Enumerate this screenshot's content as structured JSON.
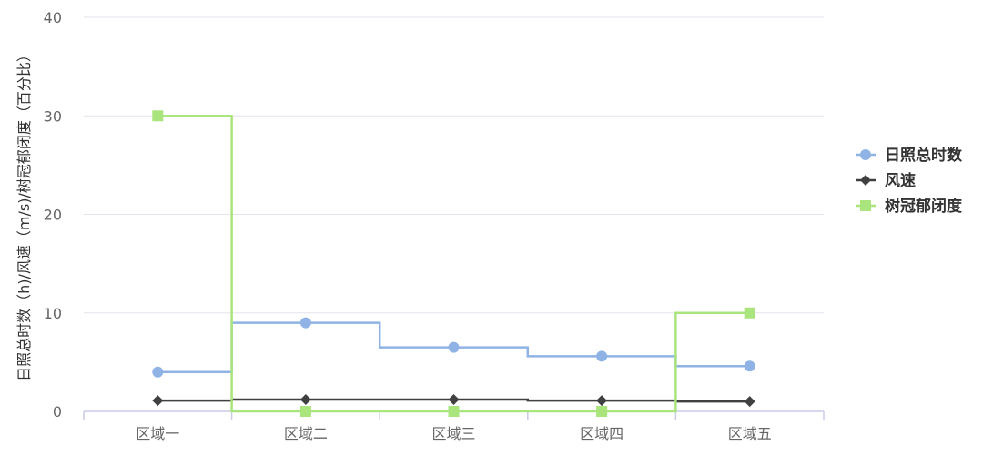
{
  "chart_data": {
    "type": "line",
    "step": true,
    "categories": [
      "区域一",
      "区域二",
      "区域三",
      "区域四",
      "区域五"
    ],
    "ylabel": "日照总时数（h)/风速（m/s)/树冠郁闭度（百分比）",
    "ylim": [
      0,
      40
    ],
    "yticks": [
      0,
      10,
      20,
      30,
      40
    ],
    "grid": true,
    "legend_position": "right",
    "series": [
      {
        "name": "日照总时数",
        "values": [
          4.0,
          9.0,
          6.5,
          5.6,
          4.6
        ],
        "color": "#8fb3e5",
        "marker": "circle"
      },
      {
        "name": "风速",
        "values": [
          1.1,
          1.2,
          1.2,
          1.1,
          1.0
        ],
        "color": "#404040",
        "marker": "diamond"
      },
      {
        "name": "树冠郁闭度",
        "values": [
          30,
          0,
          0,
          0,
          10
        ],
        "color": "#a9e57c",
        "marker": "square"
      }
    ]
  }
}
